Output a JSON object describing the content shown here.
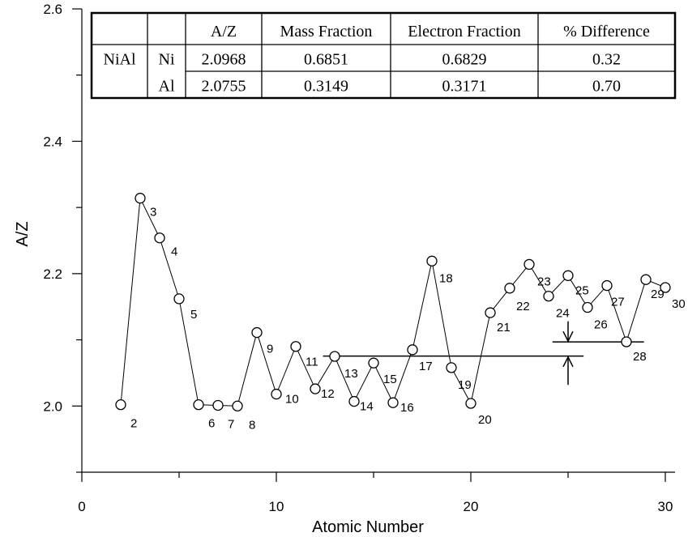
{
  "chart_data": {
    "type": "scatter",
    "xlabel": "Atomic Number",
    "ylabel": "A/Z",
    "xlim": [
      0,
      30.5
    ],
    "ylim": [
      1.9,
      2.6
    ],
    "x_ticks": [
      "0",
      "10",
      "20",
      "30"
    ],
    "y_ticks": [
      "2.0",
      "2.2",
      "2.4",
      "2.6"
    ],
    "grid": false,
    "series": [
      {
        "x": [
          2,
          3,
          4,
          5,
          6,
          7,
          8,
          9,
          10,
          11,
          12,
          13,
          14,
          15,
          16,
          17,
          18,
          19,
          20,
          21,
          22,
          23,
          24,
          25,
          26,
          27,
          28,
          29,
          30
        ],
        "y": [
          2.002,
          2.314,
          2.254,
          2.162,
          2.002,
          2.001,
          2.0,
          2.111,
          2.018,
          2.09,
          2.026,
          2.075,
          2.007,
          2.065,
          2.005,
          2.085,
          2.219,
          2.058,
          2.004,
          2.141,
          2.178,
          2.214,
          2.166,
          2.197,
          2.149,
          2.182,
          2.097,
          2.191,
          2.179
        ],
        "point_labels": [
          "2",
          "3",
          "4",
          "5",
          "6",
          "7",
          "8",
          "9",
          "10",
          "11",
          "12",
          "13",
          "14",
          "15",
          "16",
          "17",
          "18",
          "19",
          "20",
          "21",
          "22",
          "23",
          "24",
          "25",
          "26",
          "27",
          "28",
          "29",
          "30"
        ],
        "line": true,
        "marker": "open-circle",
        "color": "#000000"
      }
    ],
    "reference_lines": [
      {
        "y": 2.0755,
        "x_from": 12.4,
        "x_to": 25.8
      },
      {
        "y": 2.0968,
        "x_from": 24.2,
        "x_to": 28.9
      }
    ],
    "arrows": [
      {
        "x": 25,
        "from_y": 2.128,
        "to_y": 2.098
      },
      {
        "x": 25,
        "from_y": 2.032,
        "to_y": 2.074
      }
    ],
    "table": {
      "columns": [
        "",
        "",
        "A/Z",
        "Mass Fraction",
        "Electron Fraction",
        "% Difference"
      ],
      "rows": [
        [
          "NiAl",
          "Ni",
          "2.0968",
          "0.6851",
          "0.6829",
          "0.32"
        ],
        [
          "",
          "Al",
          "2.0755",
          "0.3149",
          "0.3171",
          "0.70"
        ]
      ]
    }
  }
}
